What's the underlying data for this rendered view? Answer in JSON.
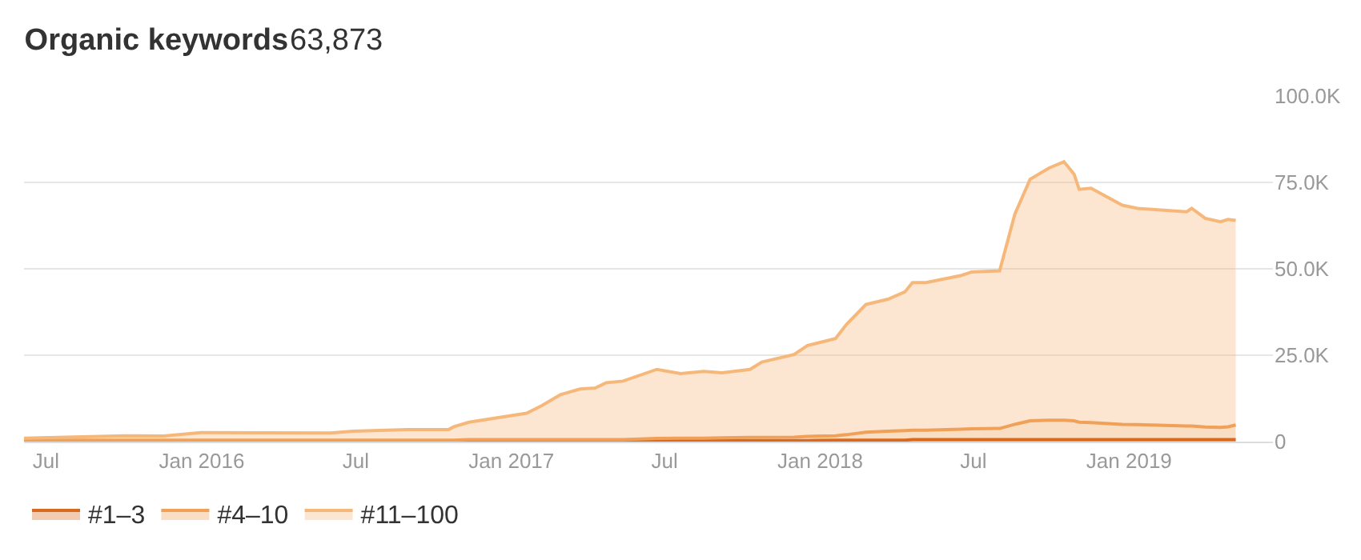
{
  "chart_data": {
    "type": "area",
    "stacked": true,
    "title": "Organic keywords",
    "annotations": [
      "63,873"
    ],
    "x": [
      "2015-06-05",
      "2015-10-02",
      "2015-11-17",
      "2015-12-31",
      "2016-06-01",
      "2016-06-28",
      "2016-08-31",
      "2016-10-19",
      "2016-10-25",
      "2016-11-12",
      "2017-01-19",
      "2017-02-06",
      "2017-02-28",
      "2017-03-23",
      "2017-04-10",
      "2017-04-23",
      "2017-05-13",
      "2017-06-22",
      "2017-07-20",
      "2017-08-16",
      "2017-09-07",
      "2017-10-10",
      "2017-10-24",
      "2017-12-01",
      "2017-12-17",
      "2018-01-19",
      "2018-02-01",
      "2018-02-24",
      "2018-03-22",
      "2018-04-11",
      "2018-04-20",
      "2018-05-06",
      "2018-06-17",
      "2018-06-29",
      "2018-08-01",
      "2018-08-19",
      "2018-09-06",
      "2018-09-28",
      "2018-10-16",
      "2018-10-28",
      "2018-11-03",
      "2018-11-17",
      "2018-12-24",
      "2019-01-11",
      "2019-03-10",
      "2019-03-16",
      "2019-04-01",
      "2019-04-19",
      "2019-04-28",
      "2019-05-07"
    ],
    "series": [
      {
        "name": "#1–3",
        "color": "#d9691e",
        "values": [
          0.2,
          0.2,
          0.2,
          0.2,
          0.2,
          0.2,
          0.2,
          0.2,
          0.2,
          0.2,
          0.3,
          0.3,
          0.3,
          0.3,
          0.3,
          0.3,
          0.3,
          0.3,
          0.3,
          0.3,
          0.3,
          0.3,
          0.3,
          0.3,
          0.3,
          0.4,
          0.4,
          0.4,
          0.4,
          0.4,
          0.6,
          0.6,
          0.6,
          0.6,
          0.6,
          0.6,
          0.6,
          0.6,
          0.6,
          0.6,
          0.6,
          0.6,
          0.6,
          0.6,
          0.6,
          0.6,
          0.6,
          0.6,
          0.6,
          0.6
        ]
      },
      {
        "name": "#4–10",
        "color": "#f0a057",
        "values": [
          0.2,
          0.2,
          0.2,
          0.2,
          0.2,
          0.2,
          0.2,
          0.2,
          0.2,
          0.4,
          0.3,
          0.3,
          0.3,
          0.3,
          0.3,
          0.3,
          0.3,
          0.6,
          0.7,
          0.7,
          0.8,
          0.9,
          0.9,
          1.0,
          1.2,
          1.3,
          1.6,
          2.3,
          2.6,
          2.8,
          2.7,
          2.7,
          3.0,
          3.1,
          3.2,
          4.4,
          5.4,
          5.6,
          5.6,
          5.4,
          5.0,
          4.9,
          4.4,
          4.3,
          3.9,
          3.9,
          3.6,
          3.5,
          3.7,
          4.2
        ]
      },
      {
        "name": "#11–100",
        "color": "#f6b87a",
        "values": [
          0.6,
          1.3,
          1.2,
          2.2,
          2.1,
          2.6,
          3.1,
          3.1,
          3.9,
          5.0,
          7.6,
          9.8,
          13.0,
          14.6,
          14.9,
          16.4,
          16.9,
          20.0,
          18.7,
          19.3,
          18.8,
          19.7,
          21.8,
          23.9,
          26.3,
          28.1,
          31.9,
          37.0,
          38.2,
          40.1,
          42.7,
          42.7,
          44.5,
          45.4,
          45.6,
          60.8,
          69.9,
          72.9,
          74.8,
          71.4,
          67.4,
          67.8,
          63.4,
          62.6,
          62.0,
          63.0,
          60.4,
          59.5,
          60.0,
          59.2
        ]
      }
    ],
    "xlim": [
      "2015-06-05",
      "2019-06-20"
    ],
    "xticks": [
      {
        "value": "2015-07-01",
        "label": "Jul"
      },
      {
        "value": "2016-01-01",
        "label": "Jan 2016"
      },
      {
        "value": "2016-07-01",
        "label": "Jul"
      },
      {
        "value": "2017-01-01",
        "label": "Jan 2017"
      },
      {
        "value": "2017-07-01",
        "label": "Jul"
      },
      {
        "value": "2018-01-01",
        "label": "Jan 2018"
      },
      {
        "value": "2018-07-01",
        "label": "Jul"
      },
      {
        "value": "2019-01-01",
        "label": "Jan 2019"
      }
    ],
    "ylim": [
      0,
      100
    ],
    "yticks": [
      0,
      {
        "value": 25,
        "label": "25.0K"
      },
      {
        "value": 50,
        "label": "50.0K"
      },
      {
        "value": 75,
        "label": "75.0K"
      },
      {
        "value": 100,
        "label": "100.0K"
      }
    ],
    "grid": "y",
    "legend": "bottom left",
    "marker": "none",
    "line_style": "solid"
  }
}
